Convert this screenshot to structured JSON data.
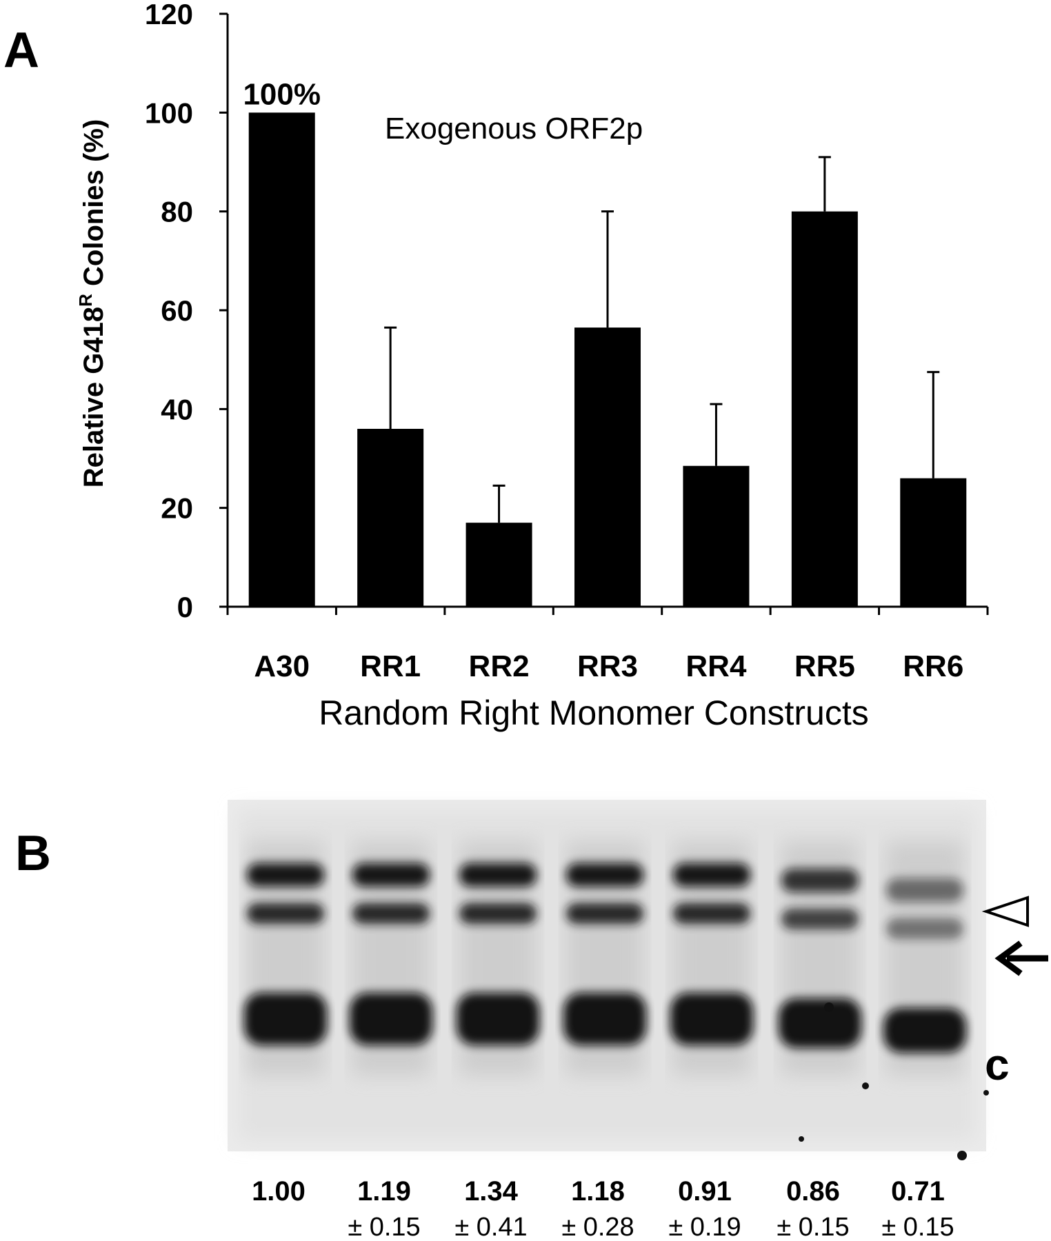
{
  "panels": {
    "a_letter": "A",
    "b_letter": "B"
  },
  "chart_data": {
    "type": "bar",
    "title": "",
    "annotation": "Exogenous ORF2p",
    "ylabel_main": "Relative G418",
    "ylabel_sup": "R",
    "ylabel_end": " Colonies (%)",
    "xlabel": "Random Right Monomer Constructs",
    "ylim": [
      0,
      120
    ],
    "yticks": [
      0,
      20,
      40,
      60,
      80,
      100,
      120
    ],
    "categories": [
      "A30",
      "RR1",
      "RR2",
      "RR3",
      "RR4",
      "RR5",
      "RR6"
    ],
    "values": [
      100,
      36,
      17,
      56.5,
      28.5,
      80,
      26
    ],
    "error_upper": [
      null,
      20.5,
      7.5,
      23.5,
      12.5,
      11,
      21.5
    ],
    "data_labels": [
      "100%",
      null,
      null,
      null,
      null,
      null,
      null
    ],
    "bar_color": "#000000",
    "grid": false,
    "legend": "none"
  },
  "blot": {
    "ratios": [
      "1.00",
      "1.19",
      "1.34",
      "1.18",
      "0.91",
      "0.86",
      "0.71"
    ],
    "errors": [
      null,
      "0.15",
      "0.41",
      "0.28",
      "0.19",
      "0.15",
      "0.15"
    ],
    "pm_symbol": "±",
    "control_label": "c",
    "markers": [
      "open-triangle-marker",
      "arrow-marker"
    ]
  }
}
